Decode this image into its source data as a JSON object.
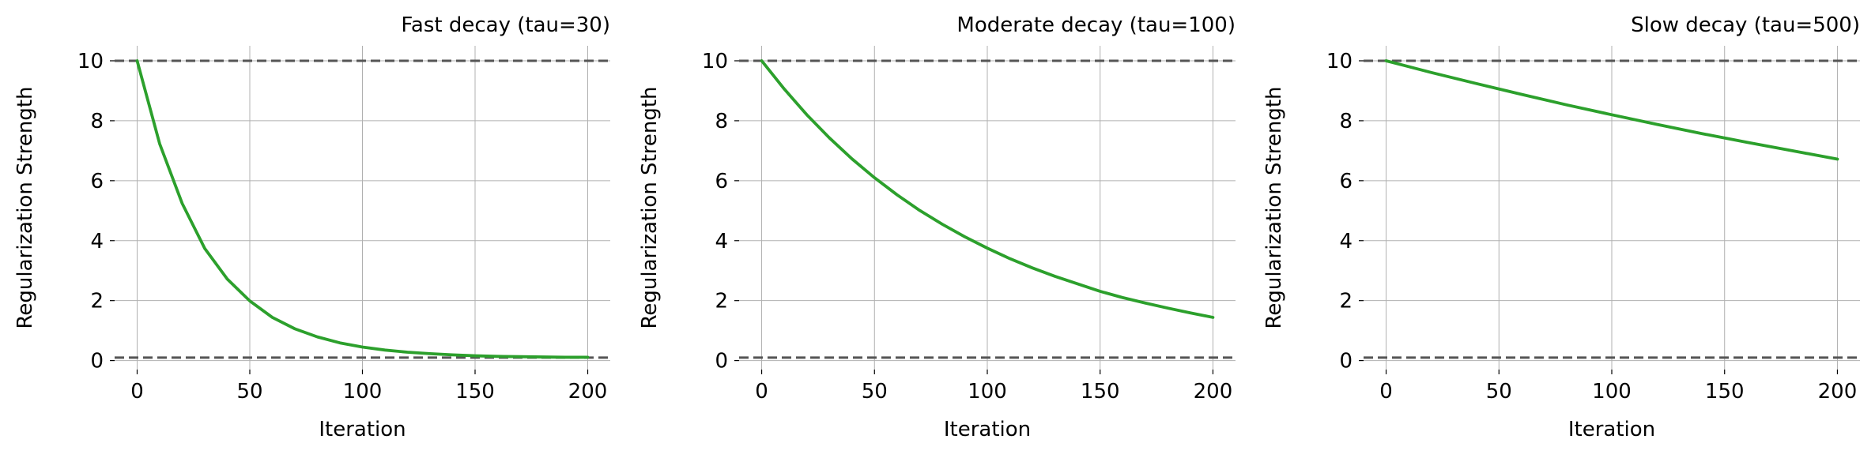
{
  "chart_data": [
    {
      "type": "line",
      "title": "Fast decay (tau=30)",
      "xlabel": "Iteration",
      "ylabel": "Regularization Strength",
      "xlim": [
        -10,
        210
      ],
      "ylim": [
        -0.3,
        10.5
      ],
      "xticks": [
        0,
        50,
        100,
        150,
        200
      ],
      "yticks": [
        0,
        2,
        4,
        6,
        8,
        10
      ],
      "xtick_labels": [
        "0",
        "50",
        "100",
        "150",
        "200"
      ],
      "ytick_labels": [
        "0",
        "2",
        "4",
        "6",
        "8",
        "10"
      ],
      "grid": true,
      "reference_lines": [
        10,
        0.1
      ],
      "series": [
        {
          "color": "#2ca02c",
          "x": [
            0,
            10,
            20,
            30,
            40,
            50,
            60,
            70,
            80,
            90,
            100,
            110,
            120,
            130,
            140,
            150,
            160,
            170,
            180,
            190,
            200
          ],
          "y": [
            10.0,
            7.23,
            5.24,
            3.74,
            2.72,
            1.99,
            1.44,
            1.06,
            0.79,
            0.59,
            0.45,
            0.35,
            0.28,
            0.23,
            0.19,
            0.16,
            0.14,
            0.13,
            0.12,
            0.11,
            0.11
          ]
        }
      ]
    },
    {
      "type": "line",
      "title": "Moderate decay (tau=100)",
      "xlabel": "Iteration",
      "ylabel": "Regularization Strength",
      "xlim": [
        -10,
        210
      ],
      "ylim": [
        -0.3,
        10.5
      ],
      "xticks": [
        0,
        50,
        100,
        150,
        200
      ],
      "yticks": [
        0,
        2,
        4,
        6,
        8,
        10
      ],
      "xtick_labels": [
        "0",
        "50",
        "100",
        "150",
        "200"
      ],
      "ytick_labels": [
        "0",
        "2",
        "4",
        "6",
        "8",
        "10"
      ],
      "grid": true,
      "reference_lines": [
        10,
        0.1
      ],
      "series": [
        {
          "color": "#2ca02c",
          "x": [
            0,
            10,
            20,
            30,
            40,
            50,
            60,
            70,
            80,
            90,
            100,
            110,
            120,
            130,
            140,
            150,
            160,
            170,
            180,
            190,
            200
          ],
          "y": [
            10.0,
            9.06,
            8.2,
            7.43,
            6.73,
            6.1,
            5.53,
            5.01,
            4.55,
            4.13,
            3.75,
            3.4,
            3.09,
            2.81,
            2.56,
            2.31,
            2.1,
            1.92,
            1.75,
            1.59,
            1.44
          ]
        }
      ]
    },
    {
      "type": "line",
      "title": "Slow decay (tau=500)",
      "xlabel": "Iteration",
      "ylabel": "Regularization Strength",
      "xlim": [
        -10,
        210
      ],
      "ylim": [
        -0.3,
        10.5
      ],
      "xticks": [
        0,
        50,
        100,
        150,
        200
      ],
      "yticks": [
        0,
        2,
        4,
        6,
        8,
        10
      ],
      "xtick_labels": [
        "0",
        "50",
        "100",
        "150",
        "200"
      ],
      "ytick_labels": [
        "0",
        "2",
        "4",
        "6",
        "8",
        "10"
      ],
      "grid": true,
      "reference_lines": [
        10,
        0.1
      ],
      "series": [
        {
          "color": "#2ca02c",
          "x": [
            0,
            20,
            40,
            60,
            80,
            100,
            120,
            140,
            160,
            180,
            200
          ],
          "y": [
            10.0,
            9.61,
            9.24,
            8.88,
            8.53,
            8.2,
            7.88,
            7.57,
            7.28,
            7.0,
            6.72
          ]
        }
      ]
    }
  ]
}
